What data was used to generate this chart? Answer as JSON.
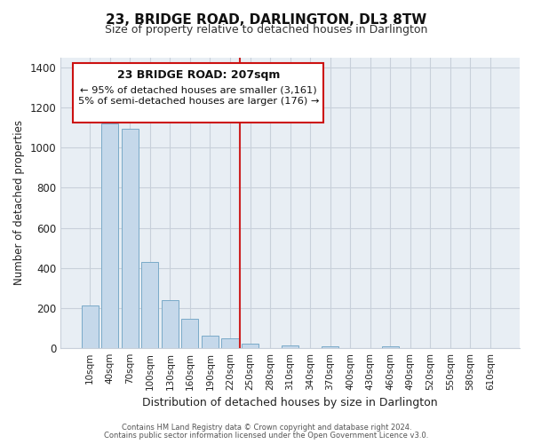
{
  "title": "23, BRIDGE ROAD, DARLINGTON, DL3 8TW",
  "subtitle": "Size of property relative to detached houses in Darlington",
  "xlabel": "Distribution of detached houses by size in Darlington",
  "ylabel": "Number of detached properties",
  "bar_labels": [
    "10sqm",
    "40sqm",
    "70sqm",
    "100sqm",
    "130sqm",
    "160sqm",
    "190sqm",
    "220sqm",
    "250sqm",
    "280sqm",
    "310sqm",
    "340sqm",
    "370sqm",
    "400sqm",
    "430sqm",
    "460sqm",
    "490sqm",
    "520sqm",
    "550sqm",
    "580sqm",
    "610sqm"
  ],
  "bar_values": [
    210,
    1120,
    1095,
    430,
    240,
    145,
    60,
    48,
    20,
    0,
    12,
    0,
    10,
    0,
    0,
    10,
    0,
    0,
    0,
    0,
    0
  ],
  "bar_color": "#c5d8ea",
  "bar_edge_color": "#7aaac8",
  "bg_color": "#e8eef4",
  "grid_color": "#c8d0da",
  "annotation_title": "23 BRIDGE ROAD: 207sqm",
  "annotation_line1": "← 95% of detached houses are smaller (3,161)",
  "annotation_line2": "5% of semi-detached houses are larger (176) →",
  "vline_x": 7.5,
  "vline_color": "#cc2222",
  "annotation_box_color": "#cc1111",
  "ylim": [
    0,
    1450
  ],
  "yticks": [
    0,
    200,
    400,
    600,
    800,
    1000,
    1200,
    1400
  ],
  "footer1": "Contains HM Land Registry data © Crown copyright and database right 2024.",
  "footer2": "Contains public sector information licensed under the Open Government Licence v3.0."
}
